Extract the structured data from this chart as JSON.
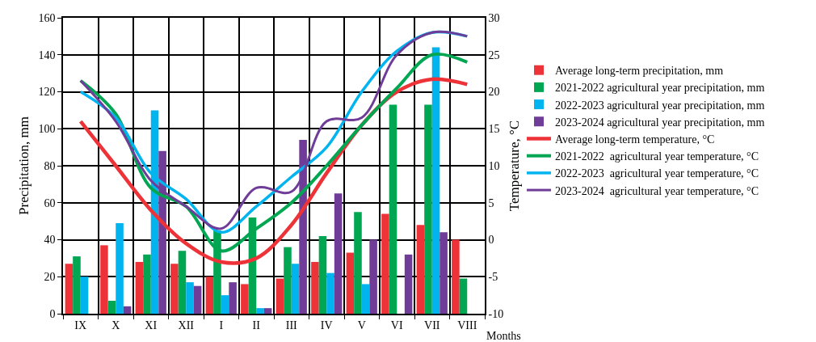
{
  "chart_data": {
    "type": "bar",
    "xlabel": "Months",
    "ylabel": "Precipitation, mm",
    "y2label": "Temperature, °C",
    "categories": [
      "IX",
      "X",
      "XI",
      "XII",
      "I",
      "II",
      "III",
      "IV",
      "V",
      "VI",
      "VII",
      "VIII"
    ],
    "series": [
      {
        "name": "Average long-term precipitation, mm",
        "color": "#ee3338",
        "values": [
          27,
          37,
          28,
          27,
          20,
          16,
          19,
          28,
          33,
          54,
          48,
          40
        ]
      },
      {
        "name": "2021-2022 agricultural year precipitation, mm",
        "color": "#00a651",
        "values": [
          31,
          7,
          32,
          34,
          45,
          52,
          36,
          42,
          55,
          113,
          113,
          19
        ]
      },
      {
        "name": "2022-2023 agricultural year precipitation, mm",
        "color": "#00b4ef",
        "values": [
          20,
          49,
          110,
          17,
          10,
          3,
          27,
          22,
          16,
          null,
          144,
          null
        ]
      },
      {
        "name": "2023-2024 agricultural year precipitation, mm",
        "color": "#6f3d98",
        "values": [
          null,
          4,
          88,
          15,
          17,
          3,
          94,
          65,
          40,
          32,
          44,
          null
        ]
      },
      {
        "name": "Average long-term temperature, °C",
        "type": "line",
        "axis": "y2",
        "color": "#ee3338",
        "values": [
          16,
          10,
          4,
          -0.5,
          -3,
          -2.5,
          2,
          9,
          15.5,
          20,
          21.7,
          21
        ]
      },
      {
        "name": "2021-2022  agricultural year temperature, °C",
        "type": "line",
        "axis": "y2",
        "color": "#00a651",
        "values": [
          21.5,
          17,
          7,
          4.5,
          -1.5,
          1.5,
          5,
          10,
          15.5,
          20.5,
          25,
          24
        ]
      },
      {
        "name": "2022-2023  agricultural year temperature, °C",
        "type": "line",
        "axis": "y2",
        "color": "#00b4ef",
        "values": [
          20,
          16.5,
          9,
          5.5,
          1,
          4.5,
          8.5,
          12.5,
          20,
          25.5,
          28,
          27.5
        ]
      },
      {
        "name": "2023-2024  agricultural year temperature, °C",
        "type": "line",
        "axis": "y2",
        "color": "#6f3d98",
        "values": [
          21.5,
          16,
          8,
          4.5,
          1.5,
          7,
          6.5,
          16,
          16.5,
          25,
          28,
          27.5
        ]
      }
    ],
    "ylim": [
      0,
      160
    ],
    "yticks": [
      0,
      20,
      40,
      60,
      80,
      100,
      120,
      140,
      160
    ],
    "y2lim": [
      -10,
      30
    ],
    "y2ticks": [
      -10,
      -5,
      0,
      5,
      10,
      15,
      20,
      25,
      30
    ],
    "grid": true,
    "legend": "right",
    "marker": "none",
    "line_style": "solid"
  }
}
